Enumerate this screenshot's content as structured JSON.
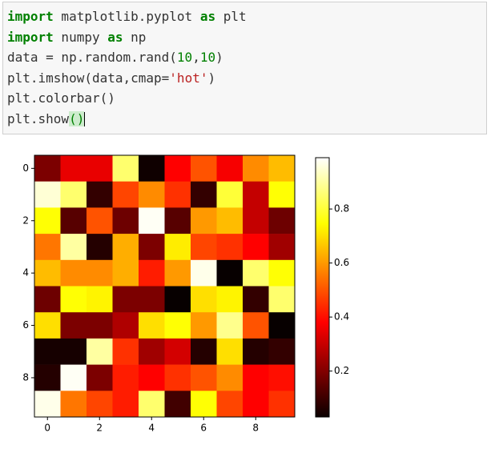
{
  "code_cell": {
    "lines": [
      [
        "import",
        " matplotlib.pyplot ",
        "as",
        " plt"
      ],
      [
        "import",
        " numpy ",
        "as",
        " np"
      ],
      [
        "data = np.random.rand(",
        "10",
        ",",
        "10",
        ")"
      ],
      [
        "plt.imshow(data,cmap=",
        "'hot'",
        ")"
      ],
      [
        "plt.colorbar()"
      ],
      [
        "plt.show",
        "()"
      ]
    ]
  },
  "chart_data": {
    "type": "heatmap",
    "colormap": "hot",
    "values": [
      [
        0.2,
        0.35,
        0.35,
        0.85,
        0.05,
        0.38,
        0.5,
        0.37,
        0.58,
        0.65
      ],
      [
        0.95,
        0.85,
        0.1,
        0.48,
        0.58,
        0.45,
        0.1,
        0.8,
        0.3,
        0.75
      ],
      [
        0.75,
        0.15,
        0.5,
        0.18,
        0.98,
        0.15,
        0.6,
        0.65,
        0.3,
        0.18
      ],
      [
        0.55,
        0.9,
        0.08,
        0.63,
        0.2,
        0.72,
        0.48,
        0.45,
        0.38,
        0.25
      ],
      [
        0.65,
        0.58,
        0.58,
        0.63,
        0.42,
        0.6,
        0.97,
        0.04,
        0.85,
        0.75
      ],
      [
        0.18,
        0.75,
        0.73,
        0.2,
        0.2,
        0.04,
        0.7,
        0.73,
        0.1,
        0.85
      ],
      [
        0.7,
        0.2,
        0.2,
        0.27,
        0.7,
        0.75,
        0.6,
        0.88,
        0.5,
        0.04
      ],
      [
        0.06,
        0.06,
        0.9,
        0.45,
        0.25,
        0.32,
        0.08,
        0.7,
        0.08,
        0.1
      ],
      [
        0.08,
        0.98,
        0.2,
        0.42,
        0.38,
        0.45,
        0.5,
        0.58,
        0.38,
        0.4
      ],
      [
        0.97,
        0.55,
        0.48,
        0.42,
        0.85,
        0.12,
        0.75,
        0.48,
        0.38,
        0.45
      ]
    ],
    "xlim": [
      -0.5,
      9.5
    ],
    "ylim": [
      9.5,
      -0.5
    ],
    "xticks": [
      0,
      2,
      4,
      6,
      8
    ],
    "yticks": [
      0,
      2,
      4,
      6,
      8
    ],
    "colorbar_lim": [
      0.03,
      0.99
    ],
    "colorbar_ticks": [
      0.2,
      0.4,
      0.6,
      0.8
    ]
  }
}
